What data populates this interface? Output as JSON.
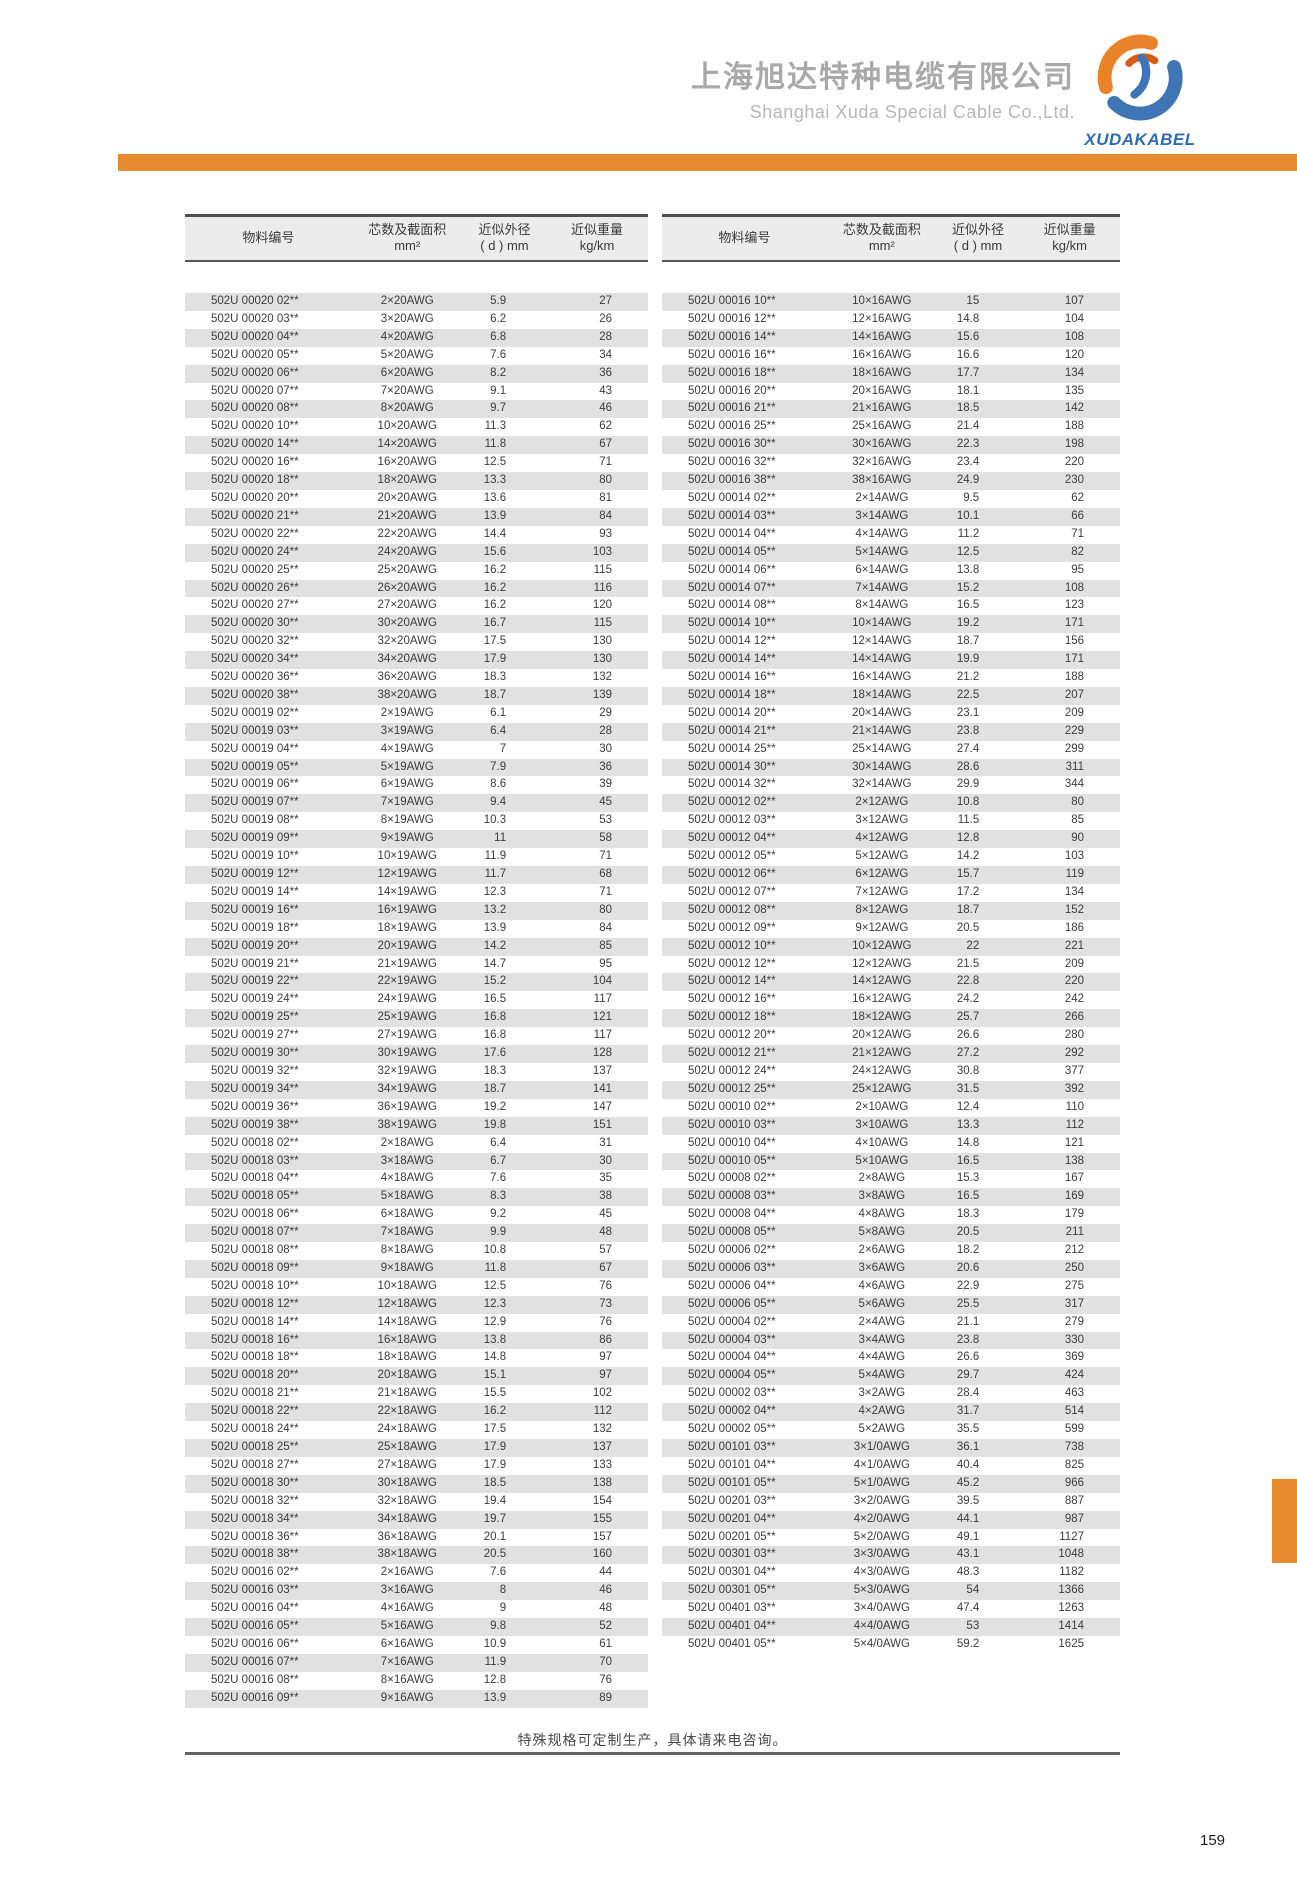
{
  "header": {
    "company_name_cn": "上海旭达特种电缆有限公司",
    "company_name_en": "Shanghai Xuda Special Cable Co.,Ltd.",
    "logo_text": "XUDAKABEL"
  },
  "columns": {
    "material_no": "物料编号",
    "cores_line1": "芯数及截面积",
    "cores_line2": "mm²",
    "diameter_line1": "近似外径",
    "diameter_line2": "( d ) mm",
    "weight_line1": "近似重量",
    "weight_line2": "kg/km"
  },
  "left_table": {
    "rows": [
      [
        "502U 00020 02**",
        "2×20AWG",
        "5.9",
        "27"
      ],
      [
        "502U 00020 03**",
        "3×20AWG",
        "6.2",
        "26"
      ],
      [
        "502U 00020 04**",
        "4×20AWG",
        "6.8",
        "28"
      ],
      [
        "502U 00020 05**",
        "5×20AWG",
        "7.6",
        "34"
      ],
      [
        "502U 00020 06**",
        "6×20AWG",
        "8.2",
        "36"
      ],
      [
        "502U 00020 07**",
        "7×20AWG",
        "9.1",
        "43"
      ],
      [
        "502U 00020 08**",
        "8×20AWG",
        "9.7",
        "46"
      ],
      [
        "502U 00020 10**",
        "10×20AWG",
        "11.3",
        "62"
      ],
      [
        "502U 00020 14**",
        "14×20AWG",
        "11.8",
        "67"
      ],
      [
        "502U 00020 16**",
        "16×20AWG",
        "12.5",
        "71"
      ],
      [
        "502U 00020 18**",
        "18×20AWG",
        "13.3",
        "80"
      ],
      [
        "502U 00020 20**",
        "20×20AWG",
        "13.6",
        "81"
      ],
      [
        "502U 00020 21**",
        "21×20AWG",
        "13.9",
        "84"
      ],
      [
        "502U 00020 22**",
        "22×20AWG",
        "14.4",
        "93"
      ],
      [
        "502U 00020 24**",
        "24×20AWG",
        "15.6",
        "103"
      ],
      [
        "502U 00020 25**",
        "25×20AWG",
        "16.2",
        "115"
      ],
      [
        "502U 00020 26**",
        "26×20AWG",
        "16.2",
        "116"
      ],
      [
        "502U 00020 27**",
        "27×20AWG",
        "16.2",
        "120"
      ],
      [
        "502U 00020 30**",
        "30×20AWG",
        "16.7",
        "115"
      ],
      [
        "502U 00020 32**",
        "32×20AWG",
        "17.5",
        "130"
      ],
      [
        "502U 00020 34**",
        "34×20AWG",
        "17.9",
        "130"
      ],
      [
        "502U 00020 36**",
        "36×20AWG",
        "18.3",
        "132"
      ],
      [
        "502U 00020 38**",
        "38×20AWG",
        "18.7",
        "139"
      ],
      [
        "502U 00019 02**",
        "2×19AWG",
        "6.1",
        "29"
      ],
      [
        "502U 00019 03**",
        "3×19AWG",
        "6.4",
        "28"
      ],
      [
        "502U 00019 04**",
        "4×19AWG",
        "7",
        "30"
      ],
      [
        "502U 00019 05**",
        "5×19AWG",
        "7.9",
        "36"
      ],
      [
        "502U 00019 06**",
        "6×19AWG",
        "8.6",
        "39"
      ],
      [
        "502U 00019 07**",
        "7×19AWG",
        "9.4",
        "45"
      ],
      [
        "502U 00019 08**",
        "8×19AWG",
        "10.3",
        "53"
      ],
      [
        "502U 00019 09**",
        "9×19AWG",
        "11",
        "58"
      ],
      [
        "502U 00019 10**",
        "10×19AWG",
        "11.9",
        "71"
      ],
      [
        "502U 00019 12**",
        "12×19AWG",
        "11.7",
        "68"
      ],
      [
        "502U 00019 14**",
        "14×19AWG",
        "12.3",
        "71"
      ],
      [
        "502U 00019 16**",
        "16×19AWG",
        "13.2",
        "80"
      ],
      [
        "502U 00019 18**",
        "18×19AWG",
        "13.9",
        "84"
      ],
      [
        "502U 00019 20**",
        "20×19AWG",
        "14.2",
        "85"
      ],
      [
        "502U 00019 21**",
        "21×19AWG",
        "14.7",
        "95"
      ],
      [
        "502U 00019 22**",
        "22×19AWG",
        "15.2",
        "104"
      ],
      [
        "502U 00019 24**",
        "24×19AWG",
        "16.5",
        "117"
      ],
      [
        "502U 00019 25**",
        "25×19AWG",
        "16.8",
        "121"
      ],
      [
        "502U 00019 27**",
        "27×19AWG",
        "16.8",
        "117"
      ],
      [
        "502U 00019 30**",
        "30×19AWG",
        "17.6",
        "128"
      ],
      [
        "502U 00019 32**",
        "32×19AWG",
        "18.3",
        "137"
      ],
      [
        "502U 00019 34**",
        "34×19AWG",
        "18.7",
        "141"
      ],
      [
        "502U 00019 36**",
        "36×19AWG",
        "19.2",
        "147"
      ],
      [
        "502U 00019 38**",
        "38×19AWG",
        "19.8",
        "151"
      ],
      [
        "502U 00018 02**",
        "2×18AWG",
        "6.4",
        "31"
      ],
      [
        "502U 00018 03**",
        "3×18AWG",
        "6.7",
        "30"
      ],
      [
        "502U 00018 04**",
        "4×18AWG",
        "7.6",
        "35"
      ],
      [
        "502U 00018 05**",
        "5×18AWG",
        "8.3",
        "38"
      ],
      [
        "502U 00018 06**",
        "6×18AWG",
        "9.2",
        "45"
      ],
      [
        "502U 00018 07**",
        "7×18AWG",
        "9.9",
        "48"
      ],
      [
        "502U 00018 08**",
        "8×18AWG",
        "10.8",
        "57"
      ],
      [
        "502U 00018 09**",
        "9×18AWG",
        "11.8",
        "67"
      ],
      [
        "502U 00018 10**",
        "10×18AWG",
        "12.5",
        "76"
      ],
      [
        "502U 00018 12**",
        "12×18AWG",
        "12.3",
        "73"
      ],
      [
        "502U 00018 14**",
        "14×18AWG",
        "12.9",
        "76"
      ],
      [
        "502U 00018 16**",
        "16×18AWG",
        "13.8",
        "86"
      ],
      [
        "502U 00018 18**",
        "18×18AWG",
        "14.8",
        "97"
      ],
      [
        "502U 00018 20**",
        "20×18AWG",
        "15.1",
        "97"
      ],
      [
        "502U 00018 21**",
        "21×18AWG",
        "15.5",
        "102"
      ],
      [
        "502U 00018 22**",
        "22×18AWG",
        "16.2",
        "112"
      ],
      [
        "502U 00018 24**",
        "24×18AWG",
        "17.5",
        "132"
      ],
      [
        "502U 00018 25**",
        "25×18AWG",
        "17.9",
        "137"
      ],
      [
        "502U 00018 27**",
        "27×18AWG",
        "17.9",
        "133"
      ],
      [
        "502U 00018 30**",
        "30×18AWG",
        "18.5",
        "138"
      ],
      [
        "502U 00018 32**",
        "32×18AWG",
        "19.4",
        "154"
      ],
      [
        "502U 00018 34**",
        "34×18AWG",
        "19.7",
        "155"
      ],
      [
        "502U 00018 36**",
        "36×18AWG",
        "20.1",
        "157"
      ],
      [
        "502U 00018 38**",
        "38×18AWG",
        "20.5",
        "160"
      ],
      [
        "502U 00016 02**",
        "2×16AWG",
        "7.6",
        "44"
      ],
      [
        "502U 00016 03**",
        "3×16AWG",
        "8",
        "46"
      ],
      [
        "502U 00016 04**",
        "4×16AWG",
        "9",
        "48"
      ],
      [
        "502U 00016 05**",
        "5×16AWG",
        "9.8",
        "52"
      ],
      [
        "502U 00016 06**",
        "6×16AWG",
        "10.9",
        "61"
      ],
      [
        "502U 00016 07**",
        "7×16AWG",
        "11.9",
        "70"
      ],
      [
        "502U 00016 08**",
        "8×16AWG",
        "12.8",
        "76"
      ],
      [
        "502U 00016 09**",
        "9×16AWG",
        "13.9",
        "89"
      ]
    ]
  },
  "right_table": {
    "rows": [
      [
        "502U 00016 10**",
        "10×16AWG",
        "15",
        "107"
      ],
      [
        "502U 00016 12**",
        "12×16AWG",
        "14.8",
        "104"
      ],
      [
        "502U 00016 14**",
        "14×16AWG",
        "15.6",
        "108"
      ],
      [
        "502U 00016 16**",
        "16×16AWG",
        "16.6",
        "120"
      ],
      [
        "502U 00016 18**",
        "18×16AWG",
        "17.7",
        "134"
      ],
      [
        "502U 00016 20**",
        "20×16AWG",
        "18.1",
        "135"
      ],
      [
        "502U 00016 21**",
        "21×16AWG",
        "18.5",
        "142"
      ],
      [
        "502U 00016 25**",
        "25×16AWG",
        "21.4",
        "188"
      ],
      [
        "502U 00016 30**",
        "30×16AWG",
        "22.3",
        "198"
      ],
      [
        "502U 00016 32**",
        "32×16AWG",
        "23.4",
        "220"
      ],
      [
        "502U 00016 38**",
        "38×16AWG",
        "24.9",
        "230"
      ],
      [
        "502U 00014 02**",
        "2×14AWG",
        "9.5",
        "62"
      ],
      [
        "502U 00014 03**",
        "3×14AWG",
        "10.1",
        "66"
      ],
      [
        "502U 00014 04**",
        "4×14AWG",
        "11.2",
        "71"
      ],
      [
        "502U 00014 05**",
        "5×14AWG",
        "12.5",
        "82"
      ],
      [
        "502U 00014 06**",
        "6×14AWG",
        "13.8",
        "95"
      ],
      [
        "502U 00014 07**",
        "7×14AWG",
        "15.2",
        "108"
      ],
      [
        "502U 00014 08**",
        "8×14AWG",
        "16.5",
        "123"
      ],
      [
        "502U 00014 10**",
        "10×14AWG",
        "19.2",
        "171"
      ],
      [
        "502U 00014 12**",
        "12×14AWG",
        "18.7",
        "156"
      ],
      [
        "502U 00014 14**",
        "14×14AWG",
        "19.9",
        "171"
      ],
      [
        "502U 00014 16**",
        "16×14AWG",
        "21.2",
        "188"
      ],
      [
        "502U 00014 18**",
        "18×14AWG",
        "22.5",
        "207"
      ],
      [
        "502U 00014 20**",
        "20×14AWG",
        "23.1",
        "209"
      ],
      [
        "502U 00014 21**",
        "21×14AWG",
        "23.8",
        "229"
      ],
      [
        "502U 00014 25**",
        "25×14AWG",
        "27.4",
        "299"
      ],
      [
        "502U 00014 30**",
        "30×14AWG",
        "28.6",
        "311"
      ],
      [
        "502U 00014 32**",
        "32×14AWG",
        "29.9",
        "344"
      ],
      [
        "502U 00012 02**",
        "2×12AWG",
        "10.8",
        "80"
      ],
      [
        "502U 00012 03**",
        "3×12AWG",
        "11.5",
        "85"
      ],
      [
        "502U 00012 04**",
        "4×12AWG",
        "12.8",
        "90"
      ],
      [
        "502U 00012 05**",
        "5×12AWG",
        "14.2",
        "103"
      ],
      [
        "502U 00012 06**",
        "6×12AWG",
        "15.7",
        "119"
      ],
      [
        "502U 00012 07**",
        "7×12AWG",
        "17.2",
        "134"
      ],
      [
        "502U 00012 08**",
        "8×12AWG",
        "18.7",
        "152"
      ],
      [
        "502U 00012 09**",
        "9×12AWG",
        "20.5",
        "186"
      ],
      [
        "502U 00012 10**",
        "10×12AWG",
        "22",
        "221"
      ],
      [
        "502U 00012 12**",
        "12×12AWG",
        "21.5",
        "209"
      ],
      [
        "502U 00012 14**",
        "14×12AWG",
        "22.8",
        "220"
      ],
      [
        "502U 00012 16**",
        "16×12AWG",
        "24.2",
        "242"
      ],
      [
        "502U 00012 18**",
        "18×12AWG",
        "25.7",
        "266"
      ],
      [
        "502U 00012 20**",
        "20×12AWG",
        "26.6",
        "280"
      ],
      [
        "502U 00012 21**",
        "21×12AWG",
        "27.2",
        "292"
      ],
      [
        "502U 00012 24**",
        "24×12AWG",
        "30.8",
        "377"
      ],
      [
        "502U 00012 25**",
        "25×12AWG",
        "31.5",
        "392"
      ],
      [
        "502U 00010 02**",
        "2×10AWG",
        "12.4",
        "110"
      ],
      [
        "502U 00010 03**",
        "3×10AWG",
        "13.3",
        "112"
      ],
      [
        "502U 00010 04**",
        "4×10AWG",
        "14.8",
        "121"
      ],
      [
        "502U 00010 05**",
        "5×10AWG",
        "16.5",
        "138"
      ],
      [
        "502U 00008 02**",
        "2×8AWG",
        "15.3",
        "167"
      ],
      [
        "502U 00008 03**",
        "3×8AWG",
        "16.5",
        "169"
      ],
      [
        "502U 00008 04**",
        "4×8AWG",
        "18.3",
        "179"
      ],
      [
        "502U 00008 05**",
        "5×8AWG",
        "20.5",
        "211"
      ],
      [
        "502U 00006 02**",
        "2×6AWG",
        "18.2",
        "212"
      ],
      [
        "502U 00006 03**",
        "3×6AWG",
        "20.6",
        "250"
      ],
      [
        "502U 00006 04**",
        "4×6AWG",
        "22.9",
        "275"
      ],
      [
        "502U 00006 05**",
        "5×6AWG",
        "25.5",
        "317"
      ],
      [
        "502U 00004 02**",
        "2×4AWG",
        "21.1",
        "279"
      ],
      [
        "502U 00004 03**",
        "3×4AWG",
        "23.8",
        "330"
      ],
      [
        "502U 00004 04**",
        "4×4AWG",
        "26.6",
        "369"
      ],
      [
        "502U 00004 05**",
        "5×4AWG",
        "29.7",
        "424"
      ],
      [
        "502U 00002 03**",
        "3×2AWG",
        "28.4",
        "463"
      ],
      [
        "502U 00002 04**",
        "4×2AWG",
        "31.7",
        "514"
      ],
      [
        "502U 00002 05**",
        "5×2AWG",
        "35.5",
        "599"
      ],
      [
        "502U 00101 03**",
        "3×1/0AWG",
        "36.1",
        "738"
      ],
      [
        "502U 00101 04**",
        "4×1/0AWG",
        "40.4",
        "825"
      ],
      [
        "502U 00101 05**",
        "5×1/0AWG",
        "45.2",
        "966"
      ],
      [
        "502U 00201 03**",
        "3×2/0AWG",
        "39.5",
        "887"
      ],
      [
        "502U 00201 04**",
        "4×2/0AWG",
        "44.1",
        "987"
      ],
      [
        "502U 00201 05**",
        "5×2/0AWG",
        "49.1",
        "1127"
      ],
      [
        "502U 00301 03**",
        "3×3/0AWG",
        "43.1",
        "1048"
      ],
      [
        "502U 00301 04**",
        "4×3/0AWG",
        "48.3",
        "1182"
      ],
      [
        "502U 00301 05**",
        "5×3/0AWG",
        "54",
        "1366"
      ],
      [
        "502U 00401 03**",
        "3×4/0AWG",
        "47.4",
        "1263"
      ],
      [
        "502U 00401 04**",
        "4×4/0AWG",
        "53",
        "1414"
      ],
      [
        "502U 00401 05**",
        "5×4/0AWG",
        "59.2",
        "1625"
      ]
    ]
  },
  "footer": {
    "note": "特殊规格可定制生产，具体请来电咨询。",
    "page_number": "159"
  },
  "colors": {
    "accent_orange": "#e78a2e",
    "stripe_gray": "#e1e1e1",
    "logo_blue": "#2e6db4"
  }
}
